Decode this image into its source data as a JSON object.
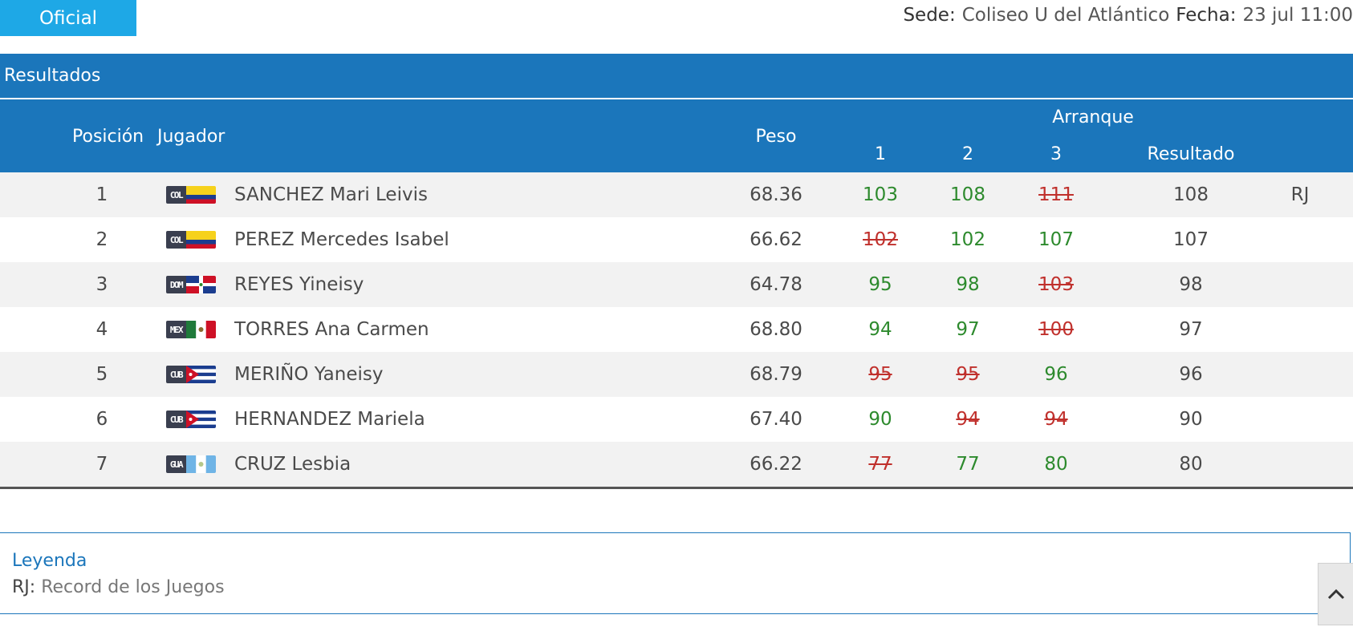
{
  "status": {
    "badge": "Oficial"
  },
  "meta": {
    "venue_label": "Sede:",
    "venue": "Coliseo U del Atlántico",
    "date_label": "Fecha:",
    "date": "23 jul 11:00"
  },
  "results_title": "Resultados",
  "headers": {
    "position": "Posición",
    "player": "Jugador",
    "weight": "Peso",
    "group": "Arranque",
    "a1": "1",
    "a2": "2",
    "a3": "3",
    "result": "Resultado"
  },
  "rows": [
    {
      "pos": "1",
      "flag_code": "COL",
      "flag_icon": "colombia-flag-icon",
      "name": "SANCHEZ Mari Leivis",
      "weight": "68.36",
      "attempts": [
        {
          "v": "103",
          "ok": true
        },
        {
          "v": "108",
          "ok": true
        },
        {
          "v": "111",
          "ok": false
        }
      ],
      "result": "108",
      "record": "RJ"
    },
    {
      "pos": "2",
      "flag_code": "COL",
      "flag_icon": "colombia-flag-icon",
      "name": "PEREZ Mercedes Isabel",
      "weight": "66.62",
      "attempts": [
        {
          "v": "102",
          "ok": false
        },
        {
          "v": "102",
          "ok": true
        },
        {
          "v": "107",
          "ok": true
        }
      ],
      "result": "107",
      "record": ""
    },
    {
      "pos": "3",
      "flag_code": "DOM",
      "flag_icon": "dominican-republic-flag-icon",
      "name": "REYES Yineisy",
      "weight": "64.78",
      "attempts": [
        {
          "v": "95",
          "ok": true
        },
        {
          "v": "98",
          "ok": true
        },
        {
          "v": "103",
          "ok": false
        }
      ],
      "result": "98",
      "record": ""
    },
    {
      "pos": "4",
      "flag_code": "MEX",
      "flag_icon": "mexico-flag-icon",
      "name": "TORRES Ana Carmen",
      "weight": "68.80",
      "attempts": [
        {
          "v": "94",
          "ok": true
        },
        {
          "v": "97",
          "ok": true
        },
        {
          "v": "100",
          "ok": false
        }
      ],
      "result": "97",
      "record": ""
    },
    {
      "pos": "5",
      "flag_code": "CUB",
      "flag_icon": "cuba-flag-icon",
      "name": "MERIÑO Yaneisy",
      "weight": "68.79",
      "attempts": [
        {
          "v": "95",
          "ok": false
        },
        {
          "v": "95",
          "ok": false
        },
        {
          "v": "96",
          "ok": true
        }
      ],
      "result": "96",
      "record": ""
    },
    {
      "pos": "6",
      "flag_code": "CUB",
      "flag_icon": "cuba-flag-icon",
      "name": "HERNANDEZ Mariela",
      "weight": "67.40",
      "attempts": [
        {
          "v": "90",
          "ok": true
        },
        {
          "v": "94",
          "ok": false
        },
        {
          "v": "94",
          "ok": false
        }
      ],
      "result": "90",
      "record": ""
    },
    {
      "pos": "7",
      "flag_code": "GUA",
      "flag_icon": "guatemala-flag-icon",
      "name": "CRUZ Lesbia",
      "weight": "66.22",
      "attempts": [
        {
          "v": "77",
          "ok": false
        },
        {
          "v": "77",
          "ok": true
        },
        {
          "v": "80",
          "ok": true
        }
      ],
      "result": "80",
      "record": ""
    }
  ],
  "legend": {
    "title": "Leyenda",
    "items": [
      {
        "abbr": "RJ:",
        "text": "Record de los Juegos"
      }
    ]
  },
  "colors": {
    "header_blue": "#1b76bb",
    "badge_blue": "#1ea8e6",
    "good_lift": "#2d8a2d",
    "no_lift": "#c0302c"
  },
  "icons": {
    "scroll_top": "chevron-up-icon"
  }
}
